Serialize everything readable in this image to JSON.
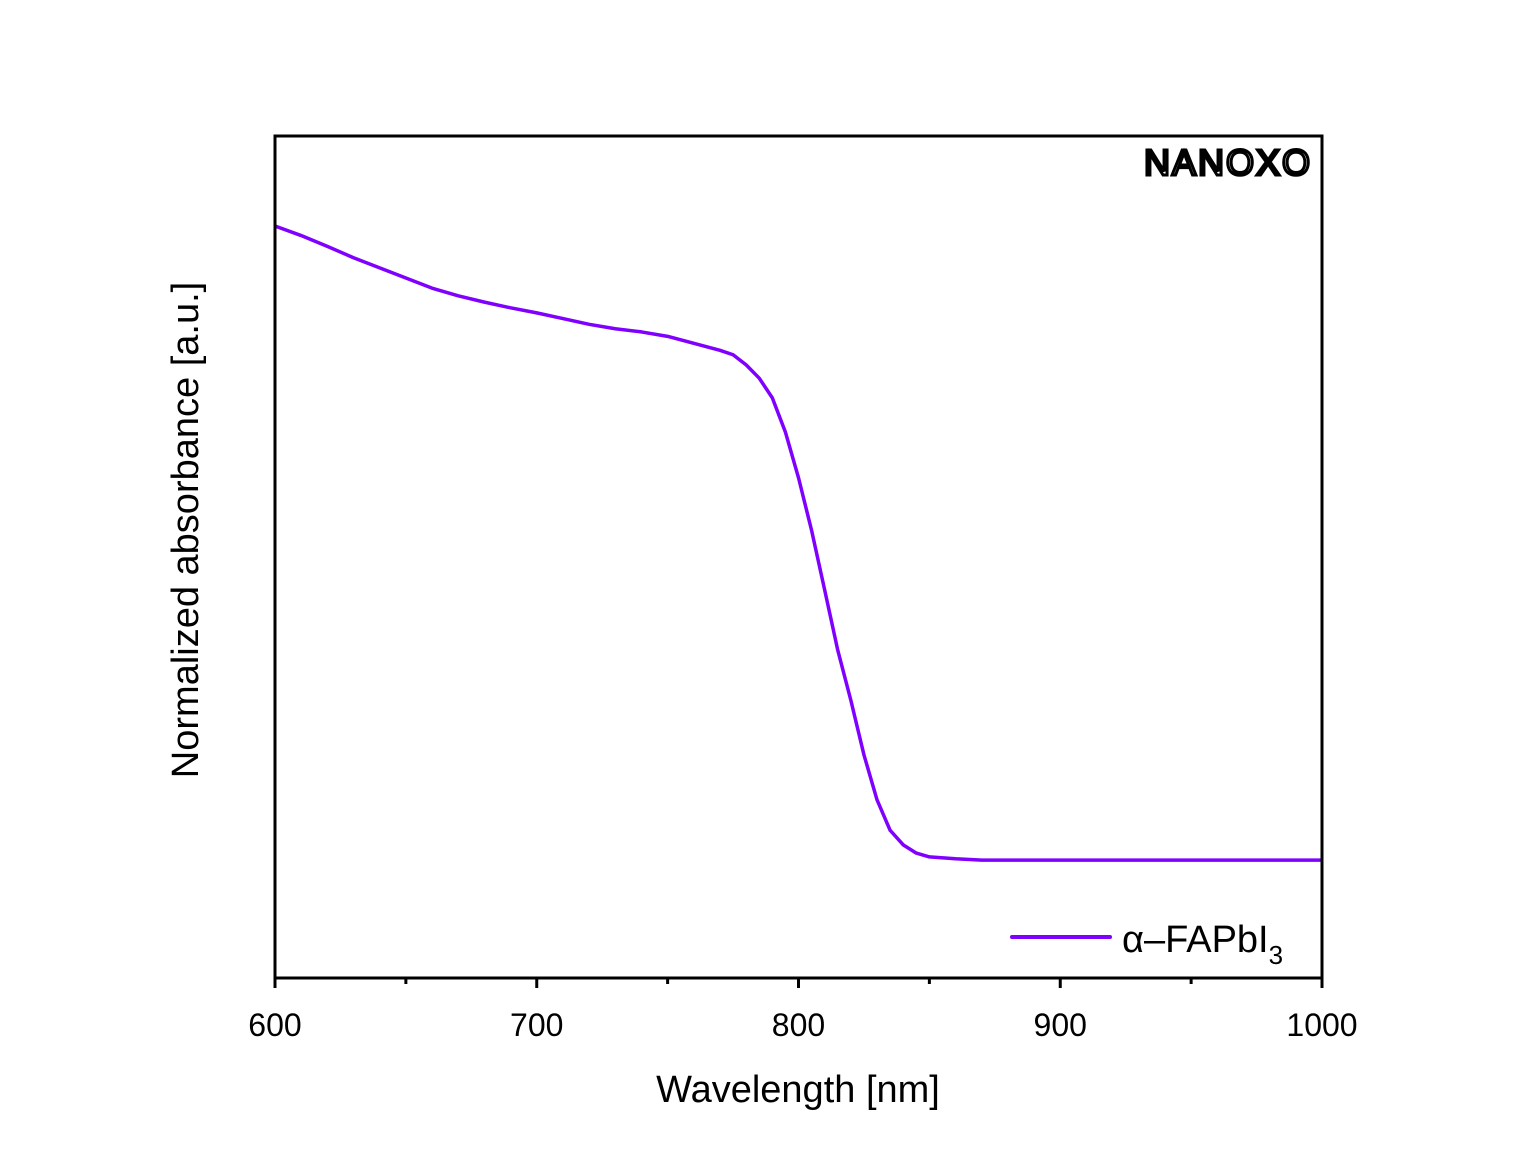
{
  "chart_data": {
    "type": "line",
    "title": "",
    "xlabel": "Wavelength [nm]",
    "ylabel": "Normalized absorbance [a.u.]",
    "xlim": [
      600,
      1000
    ],
    "ylim": [
      -0.186,
      1.142
    ],
    "x_ticks": [
      600,
      700,
      800,
      900,
      1000
    ],
    "x_tick_labels": [
      "600",
      "700",
      "800",
      "900",
      "1000"
    ],
    "x_minor_ticks": [
      650,
      750,
      850,
      950
    ],
    "y_ticks": [],
    "grid": false,
    "legend_position": "bottom-right",
    "logo": "NANOXO",
    "series": [
      {
        "name": "α–FAPbI",
        "name_subscript": "3",
        "color": "#8000ff",
        "x": [
          600,
          610,
          620,
          630,
          640,
          650,
          660,
          670,
          680,
          690,
          700,
          710,
          720,
          730,
          740,
          750,
          760,
          770,
          775,
          780,
          785,
          790,
          795,
          800,
          805,
          810,
          815,
          820,
          825,
          830,
          835,
          840,
          845,
          850,
          860,
          870,
          900,
          950,
          1000
        ],
        "y": [
          1.0,
          0.985,
          0.968,
          0.95,
          0.934,
          0.918,
          0.902,
          0.89,
          0.88,
          0.871,
          0.863,
          0.854,
          0.845,
          0.838,
          0.833,
          0.826,
          0.815,
          0.804,
          0.797,
          0.781,
          0.76,
          0.729,
          0.675,
          0.603,
          0.52,
          0.426,
          0.331,
          0.252,
          0.166,
          0.095,
          0.047,
          0.024,
          0.011,
          0.005,
          0.002,
          0.0,
          0.0,
          0.0,
          0.0
        ]
      }
    ]
  }
}
